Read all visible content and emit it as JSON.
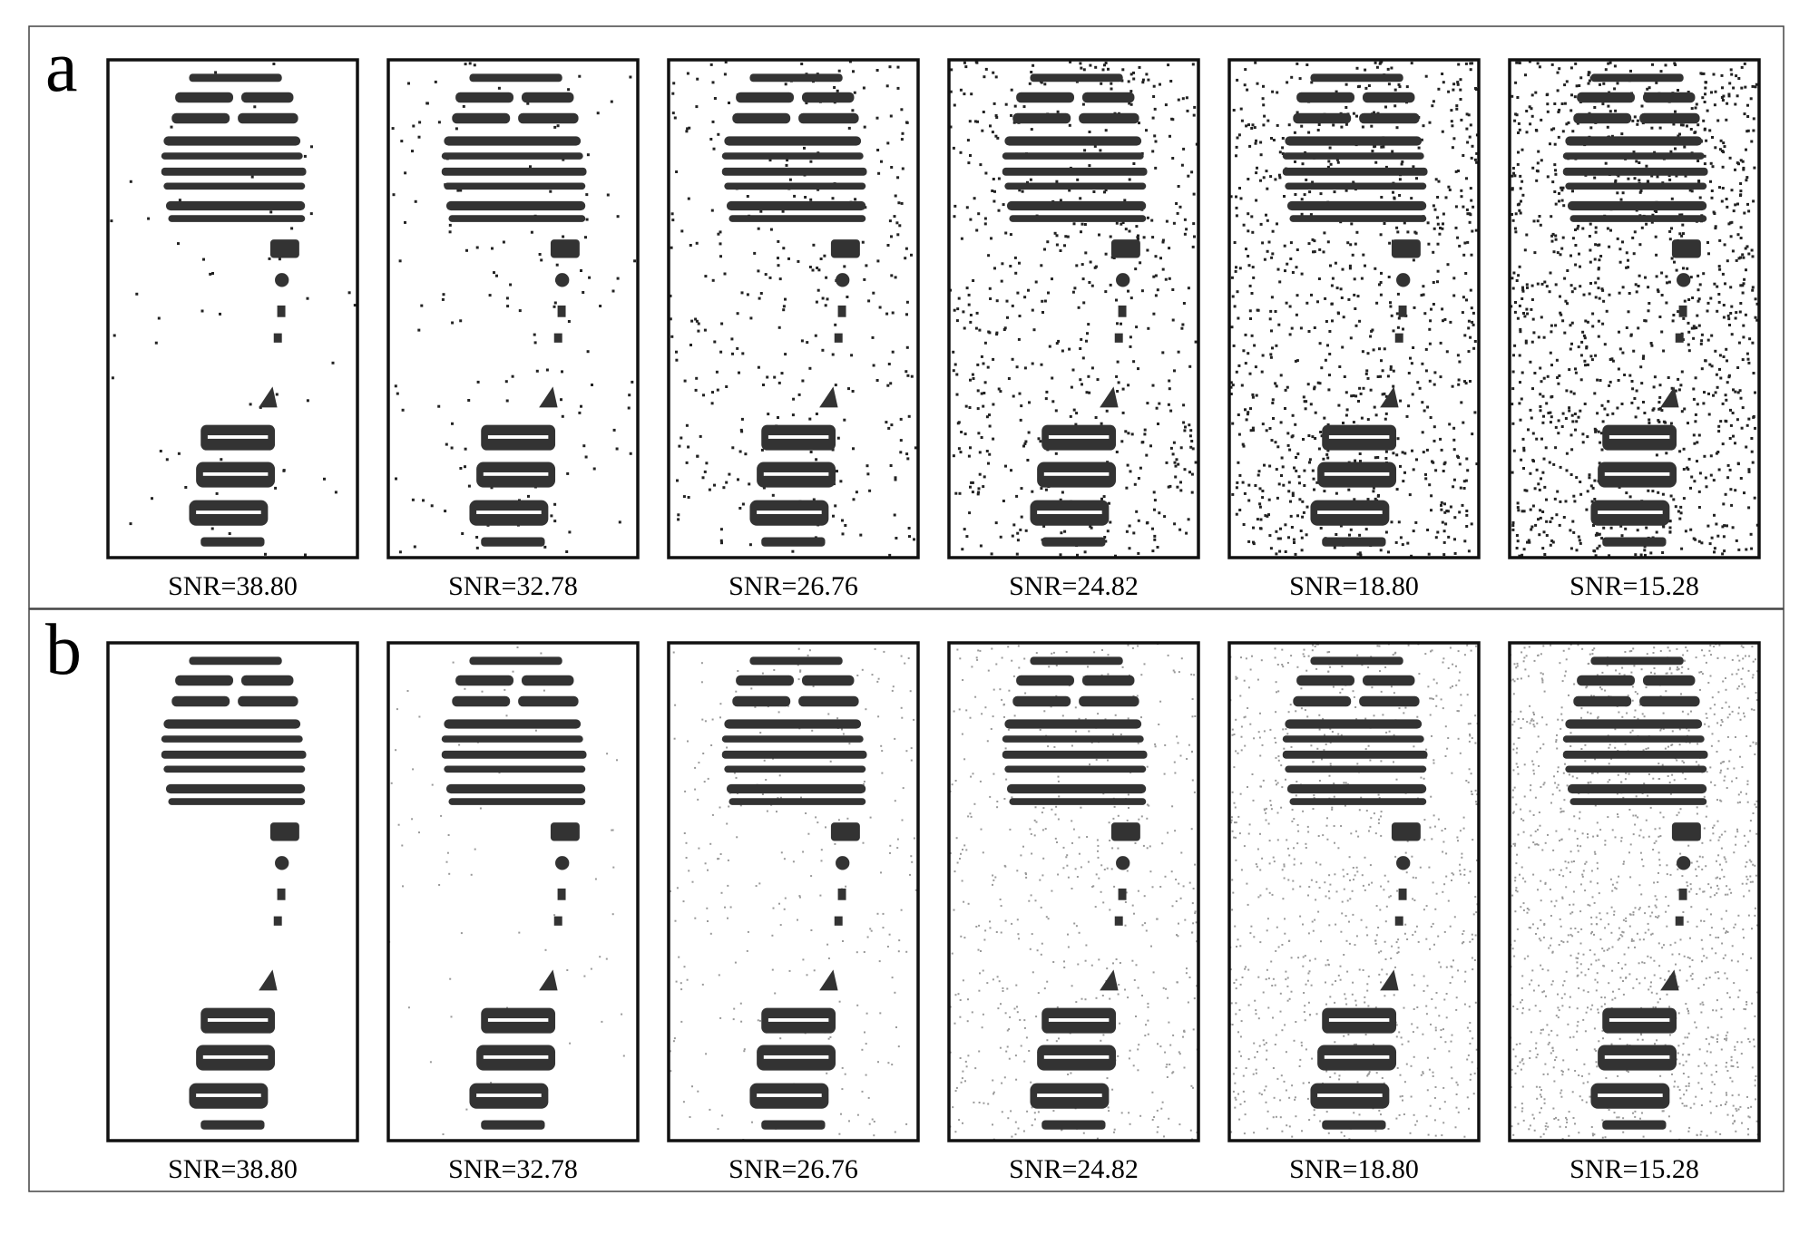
{
  "panels": [
    {
      "label": "a",
      "captions": [
        "SNR=38.80",
        "SNR=32.78",
        "SNR=26.76",
        "SNR=24.82",
        "SNR=18.80",
        "SNR=15.28"
      ]
    },
    {
      "label": "b",
      "captions": [
        "SNR=38.80",
        "SNR=32.78",
        "SNR=26.76",
        "SNR=24.82",
        "SNR=18.80",
        "SNR=15.28"
      ]
    }
  ]
}
